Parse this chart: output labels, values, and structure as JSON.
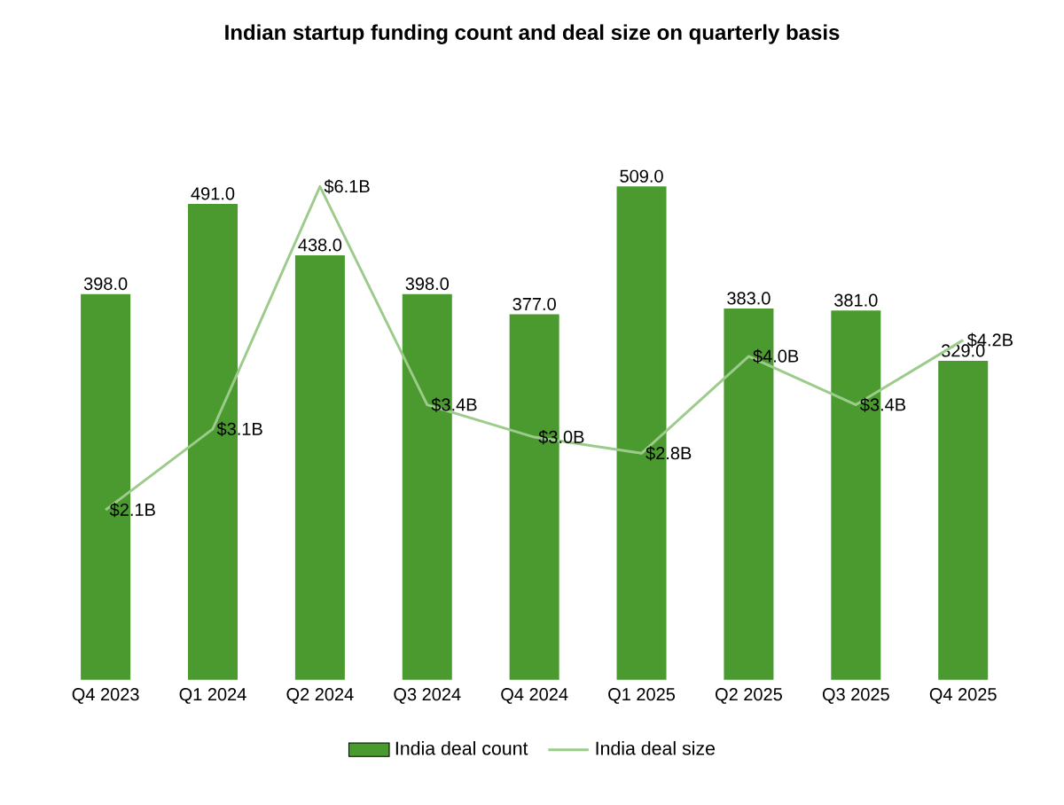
{
  "chart_data": {
    "type": "bar",
    "title": "Indian startup funding count and deal size on quarterly basis",
    "categories": [
      "Q4 2023",
      "Q1 2024",
      "Q2 2024",
      "Q3 2024",
      "Q4 2024",
      "Q1 2025",
      "Q2 2025",
      "Q3 2025",
      "Q4 2025"
    ],
    "series": [
      {
        "name": "India deal count",
        "color": "#4a9a30",
        "values": [
          398,
          491,
          438,
          398,
          377,
          509,
          383,
          381,
          329
        ],
        "value_labels": [
          "398.0",
          "491.0",
          "438.0",
          "398.0",
          "377.0",
          "509.0",
          "383.0",
          "381.0",
          "329.0"
        ]
      },
      {
        "name": "India deal size",
        "type": "line",
        "axis": "y2",
        "color": "#9ccb8c",
        "values": [
          2.1,
          3.1,
          6.1,
          3.4,
          3.0,
          2.8,
          4.0,
          3.4,
          4.2
        ],
        "value_labels": [
          "$2.1B",
          "$3.1B",
          "$6.1B",
          "$3.4B",
          "$3.0B",
          "$2.8B",
          "$4.0B",
          "$3.4B",
          "$4.2B"
        ]
      }
    ],
    "legend": "bottom"
  }
}
